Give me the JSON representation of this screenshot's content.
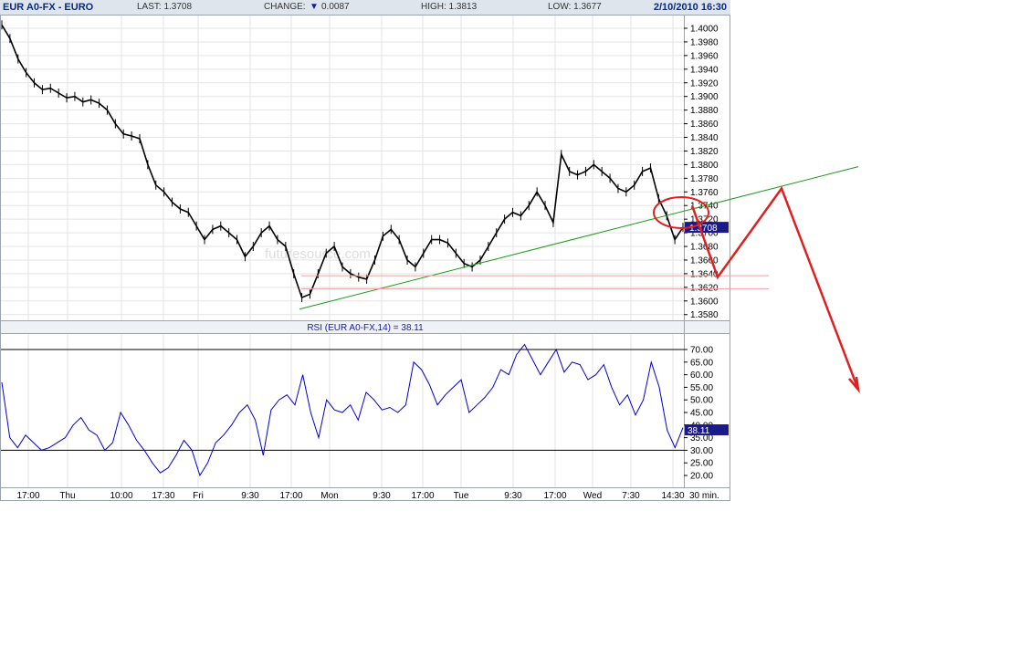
{
  "header": {
    "symbol": "EUR A0-FX - EURO",
    "last": "LAST: 1.3708",
    "change_label": "CHANGE:",
    "change_value": "0.0087",
    "high": "HIGH: 1.3813",
    "low": "LOW: 1.3677",
    "datetime": "2/10/2010 16:30"
  },
  "watermark": "futuresource.com",
  "rsi_title": "RSI (EUR A0-FX,14) = 38.11",
  "interval": "30 min.",
  "colors": {
    "header_bg": "#dfe5ec",
    "price_line": "#000000",
    "rsi_line": "#0000cc",
    "trendline": "#1a9a1a",
    "annotation": "#e02020",
    "support_lines": "#f0a0a0",
    "last_price_tag": "#1a1a8a"
  },
  "chart_data": [
    {
      "type": "line",
      "title": "EUR A0-FX - EURO",
      "interval": "30 min.",
      "ylim": [
        1.357,
        1.401
      ],
      "yticks": [
        "1.4000",
        "1.3980",
        "1.3960",
        "1.3940",
        "1.3920",
        "1.3900",
        "1.3880",
        "1.3860",
        "1.3840",
        "1.3820",
        "1.3800",
        "1.3780",
        "1.3760",
        "1.3740",
        "1.3720",
        "1.3700",
        "1.3680",
        "1.3660",
        "1.3640",
        "1.3620",
        "1.3600",
        "1.3580"
      ],
      "xticks": [
        "17:00",
        "Thu",
        "10:00",
        "17:30",
        "Fri",
        "9:30",
        "17:00",
        "Mon",
        "9:30",
        "17:00",
        "Tue",
        "9:30",
        "17:00",
        "Wed",
        "7:30",
        "14:30"
      ],
      "last_price": "1.3708",
      "series": [
        {
          "values": [
            1.4005,
            1.3985,
            1.3955,
            1.3935,
            1.392,
            1.391,
            1.3912,
            1.3905,
            1.3898,
            1.39,
            1.3892,
            1.3895,
            1.389,
            1.388,
            1.386,
            1.3845,
            1.3842,
            1.3838,
            1.38,
            1.377,
            1.376,
            1.3745,
            1.3735,
            1.373,
            1.371,
            1.369,
            1.3705,
            1.371,
            1.37,
            1.369,
            1.3665,
            1.368,
            1.37,
            1.371,
            1.369,
            1.368,
            1.364,
            1.3605,
            1.361,
            1.364,
            1.367,
            1.368,
            1.365,
            1.364,
            1.3635,
            1.3632,
            1.366,
            1.3695,
            1.3705,
            1.369,
            1.366,
            1.365,
            1.367,
            1.369,
            1.369,
            1.3685,
            1.367,
            1.3655,
            1.365,
            1.366,
            1.368,
            1.37,
            1.372,
            1.373,
            1.3725,
            1.374,
            1.376,
            1.374,
            1.3715,
            1.3815,
            1.379,
            1.3785,
            1.379,
            1.38,
            1.379,
            1.378,
            1.3765,
            1.376,
            1.377,
            1.379,
            1.3795,
            1.375,
            1.3725,
            1.369,
            1.3708
          ]
        }
      ],
      "trendline": {
        "from": [
          "17:00 Fri",
          1.3588
        ],
        "to": [
          "projection",
          1.3797
        ]
      },
      "support_levels": [
        1.3637,
        1.3618
      ],
      "annotation_path": [
        1.374,
        1.3635,
        1.3765,
        1.347
      ]
    },
    {
      "type": "line",
      "title": "RSI (EUR A0-FX,14) = 38.11",
      "ylim": [
        15,
        78
      ],
      "yticks": [
        "70.00",
        "65.00",
        "60.00",
        "55.00",
        "50.00",
        "45.00",
        "40.00",
        "35.00",
        "30.00",
        "25.00",
        "20.00"
      ],
      "levels": [
        70,
        30
      ],
      "last_value": "38.11",
      "series": [
        {
          "values": [
            57,
            35,
            31,
            36,
            33,
            30,
            31,
            33,
            35,
            40,
            43,
            38,
            36,
            30,
            33,
            45,
            40,
            34,
            30,
            25,
            21,
            23,
            28,
            34,
            30,
            20,
            25,
            33,
            36,
            40,
            45,
            48,
            42,
            28,
            46,
            50,
            52,
            48,
            60,
            45,
            35,
            50,
            46,
            45,
            48,
            42,
            53,
            50,
            46,
            47,
            45,
            48,
            65,
            62,
            56,
            48,
            52,
            55,
            58,
            45,
            48,
            51,
            55,
            62,
            60,
            68,
            72,
            66,
            60,
            65,
            70,
            61,
            65,
            64,
            58,
            60,
            64,
            55,
            48,
            52,
            44,
            50,
            65,
            55,
            38,
            31,
            39
          ]
        }
      ]
    }
  ]
}
